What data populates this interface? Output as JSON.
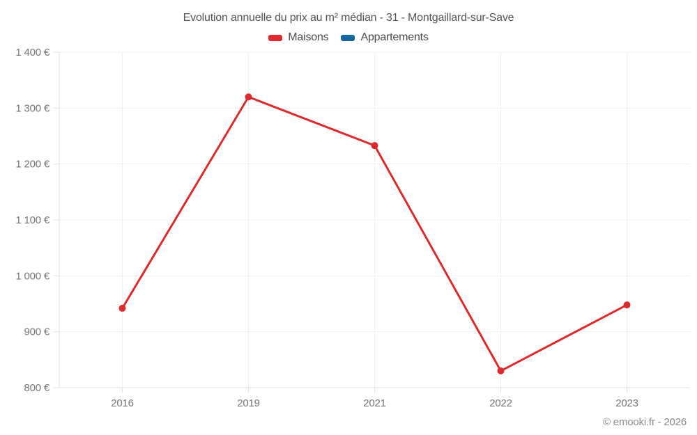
{
  "page": {
    "footer": "© emooki.fr - 2026",
    "background": "#ffffff"
  },
  "chart_data": {
    "type": "line",
    "title": "Evolution annuelle du prix au m² médian - 31 - Montgaillard-sur-Save",
    "categories": [
      "2016",
      "2019",
      "2021",
      "2022",
      "2023"
    ],
    "series": [
      {
        "name": "Maisons",
        "color": "#dc2a2e",
        "values": [
          942,
          1320,
          1233,
          830,
          948
        ]
      },
      {
        "name": "Appartements",
        "color": "#17699c",
        "values": []
      }
    ],
    "xlabel": "",
    "ylabel": "",
    "ylim": [
      800,
      1400
    ],
    "y_ticks": [
      800,
      900,
      1000,
      1100,
      1200,
      1300,
      1400
    ],
    "y_tick_suffix": " €",
    "grid": true,
    "legend_position": "top",
    "colors": {
      "grid_line": "#efefef",
      "axis_line": "#e0e0e0",
      "tick_label": "#757575",
      "title_text": "#545454",
      "legend_text": "#4a4a4a",
      "footer_text": "#8a8a8a"
    }
  }
}
